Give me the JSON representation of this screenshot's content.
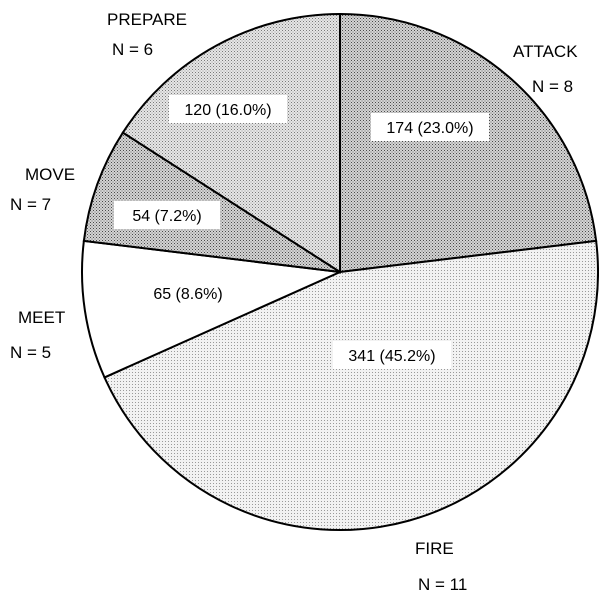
{
  "chart_data": {
    "type": "pie",
    "slices": [
      {
        "category": "ATTACK",
        "n_label": "N = 8",
        "value": 174,
        "percent": 23.0,
        "value_label": "174 (23.0%)"
      },
      {
        "category": "FIRE",
        "n_label": "N = 11",
        "value": 341,
        "percent": 45.2,
        "value_label": "341 (45.2%)"
      },
      {
        "category": "MEET",
        "n_label": "N = 5",
        "value": 65,
        "percent": 8.6,
        "value_label": "65 (8.6%)"
      },
      {
        "category": "MOVE",
        "n_label": "N = 7",
        "value": 54,
        "percent": 7.2,
        "value_label": "54 (7.2%)"
      },
      {
        "category": "PREPARE",
        "n_label": "N = 6",
        "value": 120,
        "percent": 16.0,
        "value_label": "120 (16.0%)"
      }
    ],
    "start": "12 o'clock",
    "direction": "clockwise"
  }
}
